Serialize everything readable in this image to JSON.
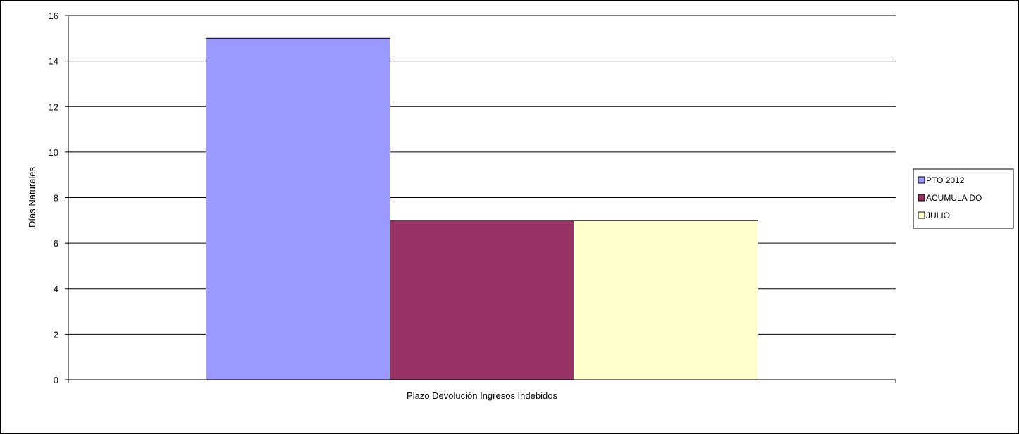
{
  "chart_data": {
    "type": "bar",
    "categories": [
      "Plazo Devolución Ingresos Indebidos"
    ],
    "series": [
      {
        "name": "PTO  2012",
        "values": [
          15
        ],
        "color": "#9999ff"
      },
      {
        "name": "ACUMULA DO",
        "values": [
          7
        ],
        "color": "#993366"
      },
      {
        "name": "JULIO",
        "values": [
          7
        ],
        "color": "#ffffcc"
      }
    ],
    "title": "",
    "xlabel": "Plazo Devolución Ingresos Indebidos",
    "ylabel": "Días Naturales",
    "ylim": [
      0,
      16
    ],
    "yticks": [
      0,
      2,
      4,
      6,
      8,
      10,
      12,
      14,
      16
    ],
    "grid": true,
    "legend_position": "right"
  }
}
